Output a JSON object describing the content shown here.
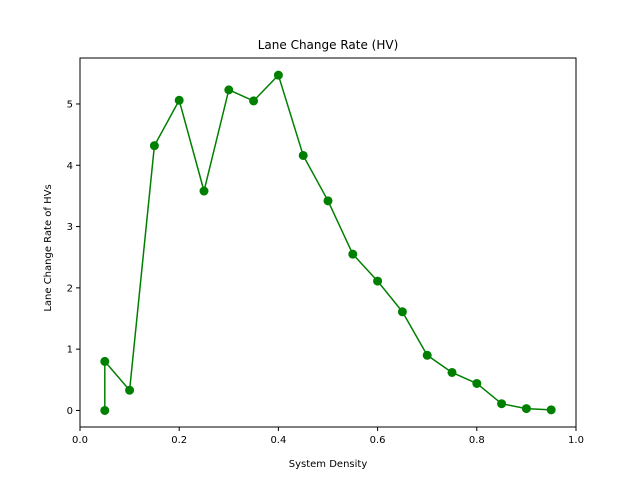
{
  "chart_data": {
    "type": "line",
    "title": "Lane Change Rate (HV)",
    "xlabel": "System Density",
    "ylabel": "Lane Change Rate of HVs",
    "xlim": [
      0.0,
      1.0
    ],
    "ylim": [
      -0.27,
      5.75
    ],
    "xticks": [
      0.0,
      0.2,
      0.4,
      0.6,
      0.8,
      1.0
    ],
    "xtick_labels": [
      "0.0",
      "0.2",
      "0.4",
      "0.6",
      "0.8",
      "1.0"
    ],
    "yticks": [
      0,
      1,
      2,
      3,
      4,
      5
    ],
    "ytick_labels": [
      "0",
      "1",
      "2",
      "3",
      "4",
      "5"
    ],
    "grid": false,
    "legend": "none",
    "series": [
      {
        "color": "#008000",
        "marker": "circle",
        "points": [
          {
            "x": 0.05,
            "y": 0.0
          },
          {
            "x": 0.05,
            "y": 0.8
          },
          {
            "x": 0.1,
            "y": 0.33
          },
          {
            "x": 0.15,
            "y": 4.32
          },
          {
            "x": 0.2,
            "y": 5.06
          },
          {
            "x": 0.25,
            "y": 3.58
          },
          {
            "x": 0.3,
            "y": 5.23
          },
          {
            "x": 0.35,
            "y": 5.05
          },
          {
            "x": 0.4,
            "y": 5.47
          },
          {
            "x": 0.45,
            "y": 4.16
          },
          {
            "x": 0.5,
            "y": 3.42
          },
          {
            "x": 0.55,
            "y": 2.55
          },
          {
            "x": 0.6,
            "y": 2.11
          },
          {
            "x": 0.65,
            "y": 1.61
          },
          {
            "x": 0.7,
            "y": 0.9
          },
          {
            "x": 0.75,
            "y": 0.62
          },
          {
            "x": 0.8,
            "y": 0.44
          },
          {
            "x": 0.85,
            "y": 0.11
          },
          {
            "x": 0.9,
            "y": 0.03
          },
          {
            "x": 0.95,
            "y": 0.01
          }
        ]
      }
    ]
  }
}
